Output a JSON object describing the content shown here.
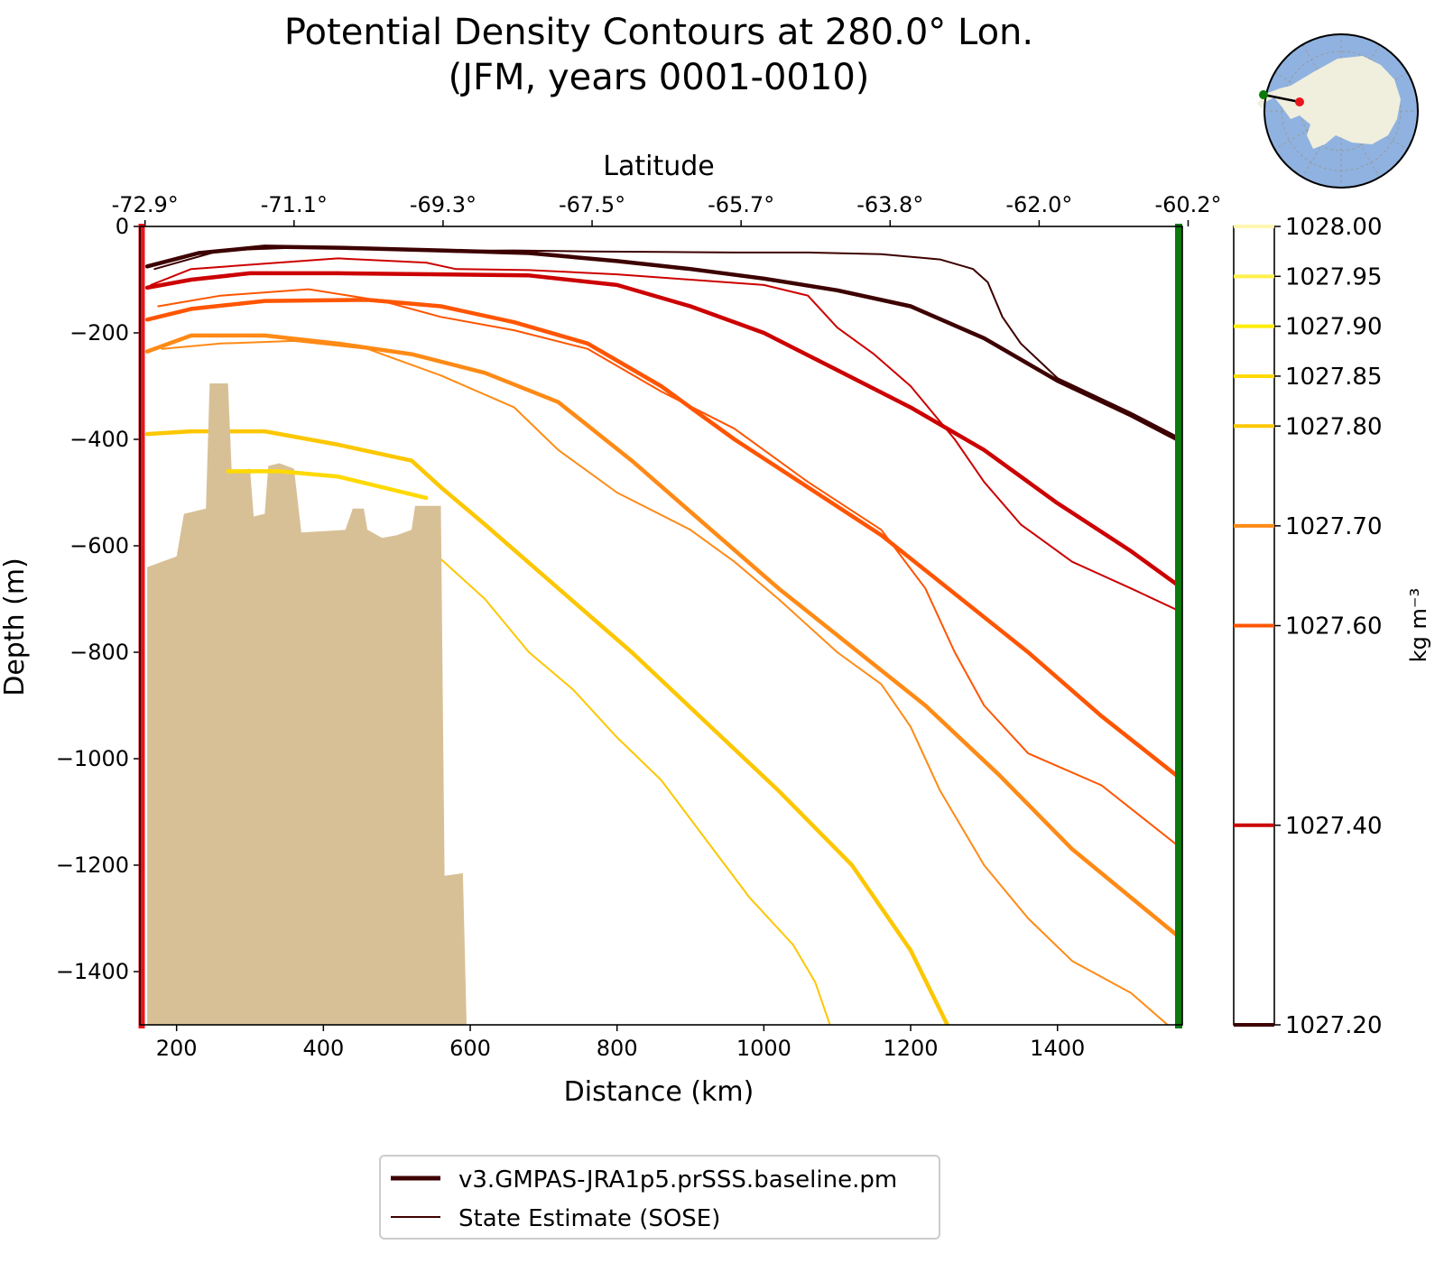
{
  "title": "Potential Density Contours at 280.0° Lon.",
  "subtitle": "(JFM, years 0001-0010)",
  "legend": {
    "model_label": "v3.GMPAS-JRA1p5.prSSS.baseline.pm",
    "obs_label": "State Estimate (SOSE)"
  },
  "colors": {
    "bathymetry": "#d8c096",
    "start_marker": "#e8151b",
    "end_marker": "#0a7a0a",
    "ocean": "#8fb2e0",
    "land": "#f0eedd"
  },
  "chart_data": {
    "type": "line",
    "title": "Potential Density Contours at 280.0° Lon.",
    "subtitle": "(JFM, years 0001-0010)",
    "xlabel": "Distance (km)",
    "ylabel": "Depth (m)",
    "top_xlabel": "Latitude",
    "xlim": [
      150,
      1570
    ],
    "ylim": [
      -1500,
      0
    ],
    "xticks": [
      200,
      400,
      600,
      800,
      1000,
      1200,
      1400
    ],
    "yticks": [
      0,
      -200,
      -400,
      -600,
      -800,
      -1000,
      -1200,
      -1400
    ],
    "top_ticks": [
      {
        "x": 157,
        "label": "-72.9°"
      },
      {
        "x": 360,
        "label": "-71.1°"
      },
      {
        "x": 563,
        "label": "-69.3°"
      },
      {
        "x": 766,
        "label": "-67.5°"
      },
      {
        "x": 969,
        "label": "-65.7°"
      },
      {
        "x": 1172,
        "label": "-63.8°"
      },
      {
        "x": 1375,
        "label": "-62.0°"
      },
      {
        "x": 1578,
        "label": "-60.2°"
      }
    ],
    "colorbar": {
      "label": "kg m⁻³",
      "range": [
        1027.2,
        1028.0
      ],
      "ticks": [
        {
          "value": 1028.0,
          "label": "1028.00",
          "color": "#fff7b0"
        },
        {
          "value": 1027.95,
          "label": "1027.95",
          "color": "#fff04a"
        },
        {
          "value": 1027.9,
          "label": "1027.90",
          "color": "#ffee00"
        },
        {
          "value": 1027.85,
          "label": "1027.85",
          "color": "#ffd900"
        },
        {
          "value": 1027.8,
          "label": "1027.80",
          "color": "#fcc700"
        },
        {
          "value": 1027.7,
          "label": "1027.70",
          "color": "#ff8a15"
        },
        {
          "value": 1027.6,
          "label": "1027.60",
          "color": "#ff5500"
        },
        {
          "value": 1027.4,
          "label": "1027.40",
          "color": "#cc0000"
        },
        {
          "value": 1027.2,
          "label": "1027.20",
          "color": "#3d0000"
        }
      ]
    },
    "legend_position": "bottom-center",
    "series": [
      {
        "level": 1027.2,
        "kind": "model",
        "color": "#3d0000",
        "points": [
          [
            160,
            -75
          ],
          [
            230,
            -50
          ],
          [
            320,
            -38
          ],
          [
            420,
            -40
          ],
          [
            560,
            -45
          ],
          [
            680,
            -50
          ],
          [
            800,
            -65
          ],
          [
            900,
            -80
          ],
          [
            1000,
            -98
          ],
          [
            1100,
            -120
          ],
          [
            1200,
            -150
          ],
          [
            1300,
            -210
          ],
          [
            1400,
            -290
          ],
          [
            1500,
            -355
          ],
          [
            1570,
            -405
          ]
        ]
      },
      {
        "level": 1027.2,
        "kind": "obs",
        "color": "#3d0000",
        "points": [
          [
            170,
            -80
          ],
          [
            260,
            -45
          ],
          [
            360,
            -40
          ],
          [
            460,
            -42
          ],
          [
            560,
            -46
          ],
          [
            660,
            -45
          ],
          [
            760,
            -47
          ],
          [
            860,
            -48
          ],
          [
            960,
            -49
          ],
          [
            1060,
            -49
          ],
          [
            1160,
            -52
          ],
          [
            1240,
            -62
          ],
          [
            1285,
            -80
          ],
          [
            1305,
            -105
          ],
          [
            1325,
            -170
          ],
          [
            1350,
            -220
          ],
          [
            1400,
            -285
          ],
          [
            1500,
            -350
          ],
          [
            1570,
            -400
          ]
        ]
      },
      {
        "level": 1027.4,
        "kind": "model",
        "color": "#cc0000",
        "points": [
          [
            160,
            -115
          ],
          [
            220,
            -100
          ],
          [
            300,
            -88
          ],
          [
            420,
            -88
          ],
          [
            560,
            -90
          ],
          [
            680,
            -92
          ],
          [
            800,
            -110
          ],
          [
            900,
            -150
          ],
          [
            1000,
            -200
          ],
          [
            1100,
            -270
          ],
          [
            1200,
            -340
          ],
          [
            1300,
            -420
          ],
          [
            1400,
            -520
          ],
          [
            1500,
            -610
          ],
          [
            1570,
            -680
          ]
        ]
      },
      {
        "level": 1027.4,
        "kind": "obs",
        "color": "#cc0000",
        "points": [
          [
            165,
            -110
          ],
          [
            220,
            -80
          ],
          [
            320,
            -70
          ],
          [
            420,
            -60
          ],
          [
            540,
            -68
          ],
          [
            580,
            -80
          ],
          [
            680,
            -82
          ],
          [
            800,
            -90
          ],
          [
            900,
            -100
          ],
          [
            1000,
            -110
          ],
          [
            1060,
            -130
          ],
          [
            1100,
            -190
          ],
          [
            1150,
            -240
          ],
          [
            1200,
            -300
          ],
          [
            1260,
            -400
          ],
          [
            1300,
            -480
          ],
          [
            1350,
            -560
          ],
          [
            1420,
            -630
          ],
          [
            1500,
            -680
          ],
          [
            1570,
            -725
          ]
        ]
      },
      {
        "level": 1027.6,
        "kind": "model",
        "color": "#ff5500",
        "points": [
          [
            160,
            -175
          ],
          [
            220,
            -155
          ],
          [
            320,
            -140
          ],
          [
            460,
            -138
          ],
          [
            560,
            -150
          ],
          [
            660,
            -180
          ],
          [
            760,
            -220
          ],
          [
            860,
            -300
          ],
          [
            960,
            -400
          ],
          [
            1060,
            -490
          ],
          [
            1160,
            -580
          ],
          [
            1260,
            -690
          ],
          [
            1360,
            -800
          ],
          [
            1460,
            -920
          ],
          [
            1570,
            -1040
          ]
        ]
      },
      {
        "level": 1027.6,
        "kind": "obs",
        "color": "#ff5500",
        "points": [
          [
            175,
            -150
          ],
          [
            260,
            -130
          ],
          [
            380,
            -118
          ],
          [
            480,
            -140
          ],
          [
            560,
            -170
          ],
          [
            660,
            -195
          ],
          [
            760,
            -230
          ],
          [
            860,
            -310
          ],
          [
            960,
            -380
          ],
          [
            1060,
            -480
          ],
          [
            1160,
            -570
          ],
          [
            1220,
            -680
          ],
          [
            1260,
            -800
          ],
          [
            1300,
            -900
          ],
          [
            1360,
            -990
          ],
          [
            1460,
            -1050
          ],
          [
            1570,
            -1170
          ]
        ]
      },
      {
        "level": 1027.7,
        "kind": "model",
        "color": "#ff8a15",
        "points": [
          [
            160,
            -235
          ],
          [
            220,
            -205
          ],
          [
            320,
            -205
          ],
          [
            420,
            -220
          ],
          [
            520,
            -240
          ],
          [
            620,
            -275
          ],
          [
            720,
            -330
          ],
          [
            820,
            -440
          ],
          [
            920,
            -560
          ],
          [
            1020,
            -680
          ],
          [
            1120,
            -790
          ],
          [
            1220,
            -900
          ],
          [
            1320,
            -1030
          ],
          [
            1420,
            -1170
          ],
          [
            1570,
            -1340
          ]
        ]
      },
      {
        "level": 1027.7,
        "kind": "obs",
        "color": "#ff8a15",
        "points": [
          [
            180,
            -230
          ],
          [
            260,
            -220
          ],
          [
            360,
            -215
          ],
          [
            460,
            -230
          ],
          [
            560,
            -280
          ],
          [
            660,
            -340
          ],
          [
            720,
            -420
          ],
          [
            800,
            -500
          ],
          [
            900,
            -570
          ],
          [
            960,
            -630
          ],
          [
            1020,
            -700
          ],
          [
            1100,
            -800
          ],
          [
            1160,
            -860
          ],
          [
            1200,
            -940
          ],
          [
            1240,
            -1060
          ],
          [
            1300,
            -1200
          ],
          [
            1360,
            -1300
          ],
          [
            1420,
            -1380
          ],
          [
            1500,
            -1440
          ],
          [
            1550,
            -1500
          ]
        ]
      },
      {
        "level": 1027.8,
        "kind": "model",
        "color": "#fcc700",
        "points": [
          [
            160,
            -390
          ],
          [
            220,
            -385
          ],
          [
            320,
            -385
          ],
          [
            420,
            -410
          ],
          [
            520,
            -440
          ],
          [
            560,
            -490
          ],
          [
            620,
            -560
          ],
          [
            720,
            -680
          ],
          [
            820,
            -800
          ],
          [
            920,
            -930
          ],
          [
            1020,
            -1060
          ],
          [
            1120,
            -1200
          ],
          [
            1200,
            -1360
          ],
          [
            1250,
            -1500
          ]
        ]
      },
      {
        "level": 1027.8,
        "kind": "obs",
        "color": "#fcc700",
        "points": [
          [
            560,
            -625
          ],
          [
            620,
            -700
          ],
          [
            680,
            -800
          ],
          [
            740,
            -870
          ],
          [
            800,
            -960
          ],
          [
            860,
            -1040
          ],
          [
            920,
            -1150
          ],
          [
            980,
            -1260
          ],
          [
            1040,
            -1350
          ],
          [
            1070,
            -1420
          ],
          [
            1090,
            -1500
          ]
        ]
      },
      {
        "level": 1027.85,
        "kind": "model",
        "color": "#ffd900",
        "points": [
          [
            270,
            -460
          ],
          [
            340,
            -460
          ],
          [
            420,
            -470
          ],
          [
            480,
            -490
          ],
          [
            540,
            -510
          ]
        ]
      }
    ],
    "bathymetry": [
      [
        160,
        -640
      ],
      [
        200,
        -620
      ],
      [
        210,
        -540
      ],
      [
        240,
        -530
      ],
      [
        245,
        -295
      ],
      [
        270,
        -295
      ],
      [
        275,
        -460
      ],
      [
        300,
        -455
      ],
      [
        305,
        -545
      ],
      [
        320,
        -540
      ],
      [
        325,
        -450
      ],
      [
        340,
        -445
      ],
      [
        360,
        -455
      ],
      [
        370,
        -575
      ],
      [
        430,
        -570
      ],
      [
        440,
        -530
      ],
      [
        455,
        -530
      ],
      [
        460,
        -570
      ],
      [
        480,
        -585
      ],
      [
        500,
        -580
      ],
      [
        520,
        -570
      ],
      [
        525,
        -525
      ],
      [
        560,
        -525
      ],
      [
        565,
        -1220
      ],
      [
        590,
        -1215
      ],
      [
        595,
        -1500
      ],
      [
        160,
        -1500
      ]
    ]
  }
}
